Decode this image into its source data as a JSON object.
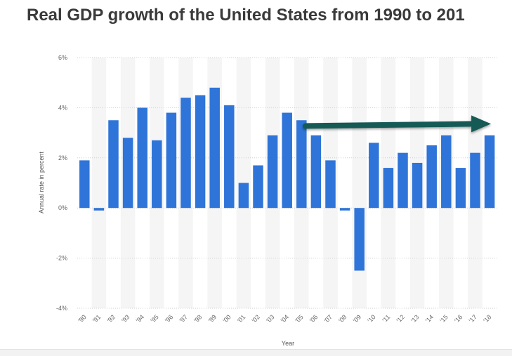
{
  "chart_data": {
    "type": "bar",
    "title": "Real GDP growth of the United States from 1990 to 201",
    "xlabel": "Year",
    "ylabel": "Annual rate in percent",
    "categories": [
      "'90",
      "'91",
      "'92",
      "'93",
      "'94",
      "'95",
      "'96",
      "'97",
      "'98",
      "'99",
      "'00",
      "'01",
      "'02",
      "'03",
      "'04",
      "'05",
      "'06",
      "'07",
      "'08",
      "'09",
      "'10",
      "'11",
      "'12",
      "'13",
      "'14",
      "'15",
      "'16",
      "'17",
      "'18"
    ],
    "values": [
      1.9,
      -0.1,
      3.5,
      2.8,
      4.0,
      2.7,
      3.8,
      4.4,
      4.5,
      4.8,
      4.1,
      1.0,
      1.7,
      2.9,
      3.8,
      3.5,
      2.9,
      1.9,
      -0.1,
      -2.5,
      2.6,
      1.6,
      2.2,
      1.8,
      2.5,
      2.9,
      1.6,
      2.2,
      2.9
    ],
    "ylim": [
      -4,
      6
    ],
    "yticks": [
      "6%",
      "4%",
      "2%",
      "0%",
      "-2%",
      "-4%"
    ],
    "grid": true,
    "bar_color": "#2f74d8",
    "annotation": {
      "type": "arrow",
      "description": "trend arrow from 2006 onward",
      "from": {
        "category": "'06",
        "y": 3.3
      },
      "to": {
        "category": "'18",
        "y": 3.3
      },
      "color": "#165a55"
    }
  }
}
